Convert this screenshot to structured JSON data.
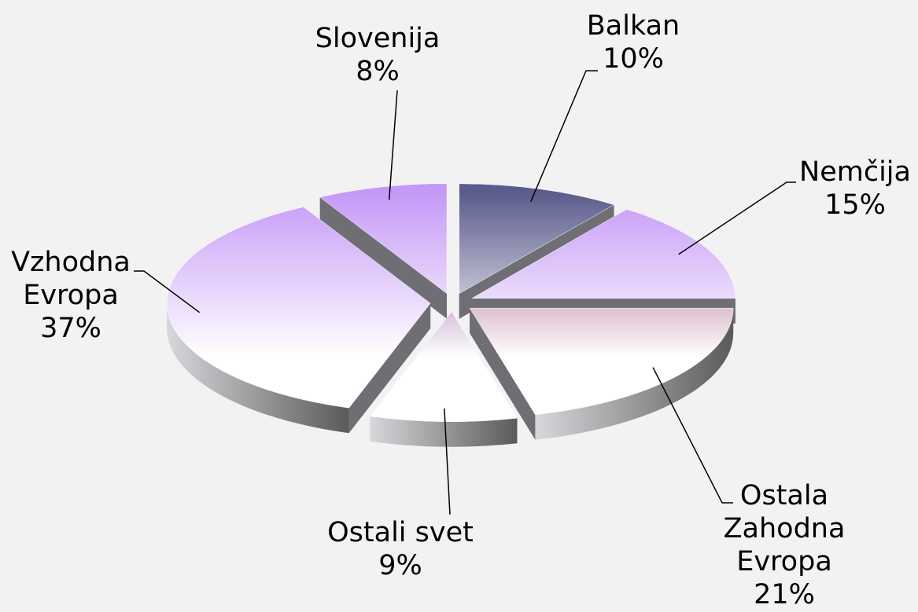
{
  "chart_data": {
    "type": "pie3d",
    "categories": [
      "Balkan",
      "Nemčija",
      "Ostala Zahodna Evropa",
      "Ostali svet",
      "Vzhodna Evropa",
      "Slovenija"
    ],
    "values": [
      10,
      15,
      21,
      9,
      37,
      8
    ],
    "value_labels": [
      "10%",
      "15%",
      "21%",
      "9%",
      "37%",
      "8%"
    ],
    "colors": [
      "#5b5b8c",
      "#c599f7",
      "#8c2b5c",
      "#6b1c7c",
      "#c599f7",
      "#c599f7"
    ]
  }
}
